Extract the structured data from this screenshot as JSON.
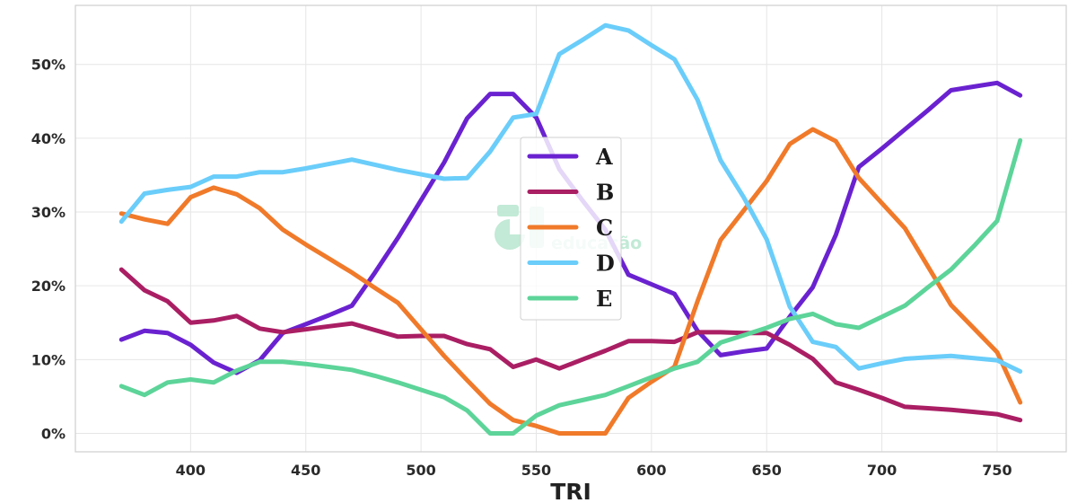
{
  "chart_data": {
    "type": "line",
    "xlabel": "TRI",
    "ylabel": "",
    "xlim": [
      350,
      780
    ],
    "ylim": [
      -2.5,
      58
    ],
    "xticks": [
      400,
      450,
      500,
      550,
      600,
      650,
      700,
      750
    ],
    "yticks": [
      0,
      10,
      20,
      30,
      40,
      50
    ],
    "y_format": "percent",
    "grid": true,
    "legend_position": "center",
    "series": [
      {
        "name": "A",
        "color": "#6a22d0",
        "x": [
          370,
          380,
          390,
          400,
          410,
          420,
          430,
          440,
          450,
          460,
          470,
          480,
          490,
          500,
          510,
          520,
          530,
          540,
          550,
          560,
          570,
          580,
          590,
          600,
          610,
          620,
          630,
          640,
          650,
          660,
          670,
          680,
          690,
          700,
          710,
          720,
          730,
          740,
          750,
          760
        ],
        "y": [
          12.7,
          13.9,
          13.6,
          12,
          9.6,
          8.2,
          9.9,
          13.6,
          14.8,
          16,
          17.3,
          21.8,
          26.5,
          31.6,
          36.7,
          42.7,
          46,
          46,
          42.8,
          35.8,
          31.6,
          27.6,
          21.5,
          20.2,
          18.9,
          13.9,
          10.6,
          11.1,
          11.5,
          15.8,
          19.8,
          26.9,
          36.1,
          38.6,
          41.2,
          43.8,
          46.5,
          47,
          47.5,
          45.8
        ]
      },
      {
        "name": "B",
        "color": "#aa1e64",
        "x": [
          370,
          380,
          390,
          400,
          410,
          420,
          430,
          440,
          450,
          460,
          470,
          480,
          490,
          500,
          510,
          520,
          530,
          540,
          550,
          560,
          570,
          580,
          590,
          600,
          610,
          620,
          630,
          640,
          650,
          660,
          670,
          680,
          690,
          700,
          710,
          720,
          730,
          740,
          750,
          760
        ],
        "y": [
          22.2,
          19.4,
          17.9,
          15,
          15.3,
          15.9,
          14.2,
          13.7,
          14.1,
          14.5,
          14.9,
          14,
          13.1,
          13.2,
          13.2,
          12.1,
          11.4,
          9,
          10,
          8.8,
          10,
          11.2,
          12.5,
          12.5,
          12.4,
          13.7,
          13.7,
          13.6,
          13.6,
          12,
          10.1,
          6.9,
          5.9,
          4.8,
          3.6,
          3.4,
          3.2,
          2.9,
          2.6,
          1.8
        ]
      },
      {
        "name": "C",
        "color": "#f07a2a",
        "x": [
          370,
          380,
          390,
          400,
          410,
          420,
          430,
          440,
          450,
          460,
          470,
          480,
          490,
          500,
          510,
          520,
          530,
          540,
          550,
          560,
          570,
          580,
          590,
          600,
          610,
          620,
          630,
          640,
          650,
          660,
          670,
          680,
          690,
          700,
          710,
          720,
          730,
          740,
          750,
          760
        ],
        "y": [
          29.8,
          29,
          28.4,
          32,
          33.3,
          32.4,
          30.5,
          27.6,
          25.6,
          23.7,
          21.8,
          19.7,
          17.7,
          14.1,
          10.5,
          7.2,
          4,
          1.8,
          1,
          0,
          0,
          0,
          4.8,
          7,
          9,
          17.9,
          26.2,
          30.2,
          34.2,
          39.2,
          41.2,
          39.6,
          34.6,
          31.2,
          27.8,
          22.6,
          17.4,
          14.2,
          11,
          4.2
        ]
      },
      {
        "name": "D",
        "color": "#6acdfa",
        "x": [
          370,
          380,
          390,
          400,
          410,
          420,
          430,
          440,
          450,
          460,
          470,
          480,
          490,
          500,
          510,
          520,
          530,
          540,
          550,
          560,
          570,
          580,
          590,
          600,
          610,
          620,
          630,
          640,
          650,
          660,
          670,
          680,
          690,
          700,
          710,
          720,
          730,
          740,
          750,
          760
        ],
        "y": [
          28.7,
          32.5,
          33,
          33.4,
          34.8,
          34.8,
          35.4,
          35.4,
          35.9,
          36.5,
          37.1,
          36.4,
          35.7,
          35.1,
          34.5,
          34.6,
          38.2,
          42.8,
          43.3,
          51.4,
          53.3,
          55.3,
          54.6,
          52.6,
          50.7,
          45.2,
          37,
          32,
          26.3,
          17.2,
          12.4,
          11.7,
          8.8,
          9.5,
          10.1,
          10.3,
          10.5,
          10.2,
          9.9,
          8.4
        ]
      },
      {
        "name": "E",
        "color": "#5dd499",
        "x": [
          370,
          380,
          390,
          400,
          410,
          420,
          430,
          440,
          450,
          460,
          470,
          480,
          490,
          500,
          510,
          520,
          530,
          540,
          550,
          560,
          570,
          580,
          590,
          600,
          610,
          620,
          630,
          640,
          650,
          660,
          670,
          680,
          690,
          700,
          710,
          720,
          730,
          740,
          750,
          760
        ],
        "y": [
          6.4,
          5.2,
          6.9,
          7.3,
          6.9,
          8.5,
          9.7,
          9.7,
          9.4,
          9,
          8.6,
          7.8,
          6.9,
          5.9,
          4.9,
          3.1,
          0,
          0,
          2.4,
          3.8,
          4.5,
          5.2,
          6.4,
          7.6,
          8.8,
          9.7,
          12.3,
          13.3,
          14.3,
          15.5,
          16.2,
          14.8,
          14.3,
          15.8,
          17.3,
          19.8,
          22.2,
          25.4,
          28.8,
          39.7
        ]
      }
    ]
  },
  "watermark": {
    "text": "educação"
  }
}
